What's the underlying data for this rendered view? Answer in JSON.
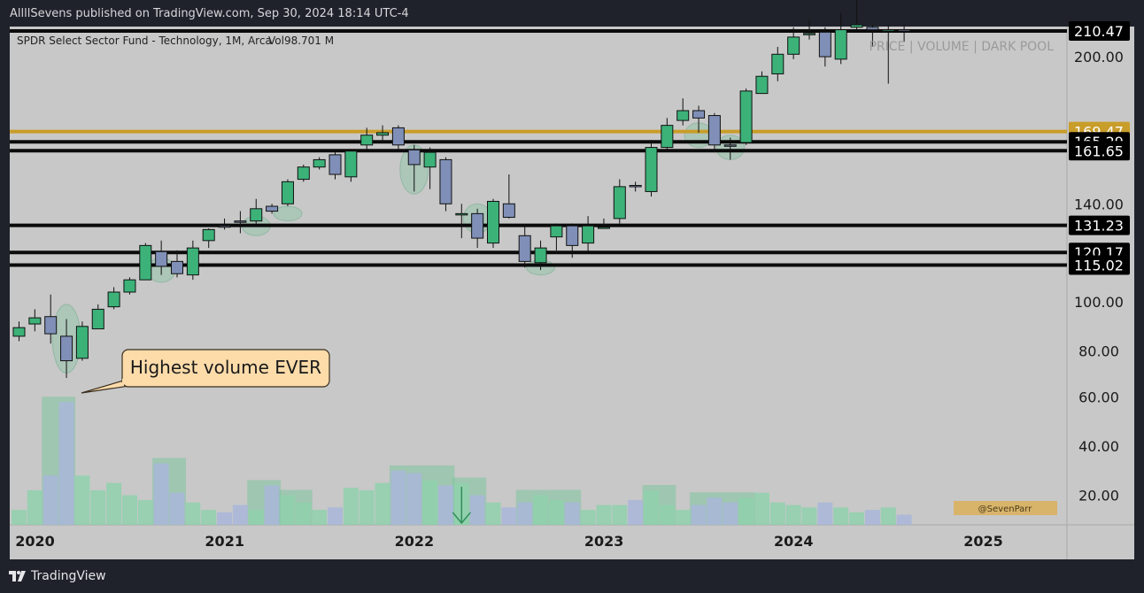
{
  "header": {
    "published_line": "AllllSevens published on TradingView.com, Sep 30, 2024 18:14 UTC-4"
  },
  "footer": {
    "brand": "TradingView"
  },
  "chart_title": "SPDR Select Sector Fund - Technology, 1M, Arca",
  "volume_label": "Vol98.701 M",
  "watermark": "PRICE | VOLUME | DARK POOL",
  "author_tag": "@SevenParr",
  "annotation": "Highest volume EVER",
  "colors": {
    "background": "#c8c8c8",
    "frame": "#1f222b",
    "up_candle": "#3cb279",
    "down_candle": "#7f8fb7",
    "support_line": "#0b0b0b",
    "gold_line": "#c99d2a",
    "callout_fill": "#fddcaa",
    "volume_up": "#8fd1ad",
    "volume_down": "#a8b6d9",
    "highlight": "#6dc494"
  },
  "chart_data": {
    "type": "candlestick",
    "title": "SPDR Select Sector Fund - Technology, 1M, Arca",
    "ylabel": "",
    "xlabel": "",
    "y_ticks": [
      "20.00",
      "40.00",
      "60.00",
      "80.00",
      "100.00",
      "140.00",
      "200.00"
    ],
    "x_ticks": [
      "2020",
      "2021",
      "2022",
      "2023",
      "2024",
      "2025"
    ],
    "price_levels": [
      {
        "label": "210.47",
        "value": 210.47,
        "style": "black"
      },
      {
        "label": "169.47",
        "value": 169.47,
        "style": "gold"
      },
      {
        "label": "165.29",
        "value": 165.29,
        "style": "black"
      },
      {
        "label": "161.65",
        "value": 161.65,
        "style": "black"
      },
      {
        "label": "131.23",
        "value": 131.23,
        "style": "black"
      },
      {
        "label": "120.17",
        "value": 120.17,
        "style": "black"
      },
      {
        "label": "115.02",
        "value": 115.02,
        "style": "black"
      }
    ],
    "candles": [
      {
        "date": "2020-01",
        "o": 86,
        "h": 92,
        "l": 84,
        "c": 89.5
      },
      {
        "date": "2020-02",
        "o": 91,
        "h": 97,
        "l": 88,
        "c": 93.5
      },
      {
        "date": "2020-03",
        "o": 94,
        "h": 103,
        "l": 83,
        "c": 87
      },
      {
        "date": "2020-04",
        "o": 86,
        "h": 93,
        "l": 69,
        "c": 76
      },
      {
        "date": "2020-05",
        "o": 77,
        "h": 92,
        "l": 76,
        "c": 90
      },
      {
        "date": "2020-06",
        "o": 89,
        "h": 99,
        "l": 89,
        "c": 97
      },
      {
        "date": "2020-07",
        "o": 98,
        "h": 106,
        "l": 97,
        "c": 104
      },
      {
        "date": "2020-08",
        "o": 104,
        "h": 110,
        "l": 103,
        "c": 109
      },
      {
        "date": "2020-09",
        "o": 109,
        "h": 124,
        "l": 109,
        "c": 123
      },
      {
        "date": "2020-10",
        "o": 120.5,
        "h": 125,
        "l": 111,
        "c": 114.5
      },
      {
        "date": "2020-11",
        "o": 116.5,
        "h": 121,
        "l": 110,
        "c": 111.5
      },
      {
        "date": "2020-12",
        "o": 111,
        "h": 125,
        "l": 109,
        "c": 122
      },
      {
        "date": "2021-01",
        "o": 125,
        "h": 130,
        "l": 122,
        "c": 129.5
      },
      {
        "date": "2021-02",
        "o": 131,
        "h": 134,
        "l": 129.5,
        "c": 130.5
      },
      {
        "date": "2021-03",
        "o": 133,
        "h": 137,
        "l": 128,
        "c": 132.5
      },
      {
        "date": "2021-04",
        "o": 133,
        "h": 142,
        "l": 132,
        "c": 138
      },
      {
        "date": "2021-05",
        "o": 139,
        "h": 140,
        "l": 136,
        "c": 137
      },
      {
        "date": "2021-06",
        "o": 140,
        "h": 150,
        "l": 139,
        "c": 149
      },
      {
        "date": "2021-07",
        "o": 150,
        "h": 156,
        "l": 149,
        "c": 155
      },
      {
        "date": "2021-08",
        "o": 155,
        "h": 159,
        "l": 154,
        "c": 158
      },
      {
        "date": "2021-09",
        "o": 160,
        "h": 161,
        "l": 150,
        "c": 152
      },
      {
        "date": "2021-10",
        "o": 151,
        "h": 162,
        "l": 149,
        "c": 161.5
      },
      {
        "date": "2021-11",
        "o": 164,
        "h": 171,
        "l": 162,
        "c": 168
      },
      {
        "date": "2021-12",
        "o": 168,
        "h": 172,
        "l": 165,
        "c": 169
      },
      {
        "date": "2022-01",
        "o": 171,
        "h": 172,
        "l": 161,
        "c": 164
      },
      {
        "date": "2022-02",
        "o": 162,
        "h": 164,
        "l": 145,
        "c": 156
      },
      {
        "date": "2022-03",
        "o": 155,
        "h": 163,
        "l": 146,
        "c": 161
      },
      {
        "date": "2022-04",
        "o": 158,
        "h": 159,
        "l": 137,
        "c": 140
      },
      {
        "date": "2022-05",
        "o": 136,
        "h": 140,
        "l": 126,
        "c": 136
      },
      {
        "date": "2022-06",
        "o": 136,
        "h": 138,
        "l": 122,
        "c": 126
      },
      {
        "date": "2022-07",
        "o": 124,
        "h": 142,
        "l": 122,
        "c": 141
      },
      {
        "date": "2022-08",
        "o": 140,
        "h": 152,
        "l": 134,
        "c": 134.5
      },
      {
        "date": "2022-09",
        "o": 127,
        "h": 131,
        "l": 114,
        "c": 116.5
      },
      {
        "date": "2022-10",
        "o": 116,
        "h": 125,
        "l": 113,
        "c": 122
      },
      {
        "date": "2022-11",
        "o": 126.5,
        "h": 132,
        "l": 121,
        "c": 131
      },
      {
        "date": "2022-12",
        "o": 131,
        "h": 132,
        "l": 118,
        "c": 123
      },
      {
        "date": "2023-01",
        "o": 124,
        "h": 135,
        "l": 120,
        "c": 131
      },
      {
        "date": "2023-02",
        "o": 130,
        "h": 134,
        "l": 130,
        "c": 130.5
      },
      {
        "date": "2023-03",
        "o": 134,
        "h": 150,
        "l": 132,
        "c": 147
      },
      {
        "date": "2023-04",
        "o": 147.5,
        "h": 149,
        "l": 145,
        "c": 147
      },
      {
        "date": "2023-05",
        "o": 145,
        "h": 166,
        "l": 143,
        "c": 163
      },
      {
        "date": "2023-06",
        "o": 163,
        "h": 175,
        "l": 162,
        "c": 172
      },
      {
        "date": "2023-07",
        "o": 174,
        "h": 183,
        "l": 172,
        "c": 178
      },
      {
        "date": "2023-08",
        "o": 178,
        "h": 180,
        "l": 169,
        "c": 175
      },
      {
        "date": "2023-09",
        "o": 176,
        "h": 177,
        "l": 161,
        "c": 164
      },
      {
        "date": "2023-10",
        "o": 164,
        "h": 167,
        "l": 158,
        "c": 163.5
      },
      {
        "date": "2023-11",
        "o": 165,
        "h": 187,
        "l": 164,
        "c": 186
      },
      {
        "date": "2023-12",
        "o": 185,
        "h": 194,
        "l": 185,
        "c": 192
      },
      {
        "date": "2024-01",
        "o": 193,
        "h": 204,
        "l": 190,
        "c": 201
      },
      {
        "date": "2024-02",
        "o": 201,
        "h": 212,
        "l": 199,
        "c": 208
      },
      {
        "date": "2024-03",
        "o": 209,
        "h": 215,
        "l": 207,
        "c": 209.5
      },
      {
        "date": "2024-04",
        "o": 210,
        "h": 212,
        "l": 196,
        "c": 200
      },
      {
        "date": "2024-05",
        "o": 199,
        "h": 218,
        "l": 197,
        "c": 211
      },
      {
        "date": "2024-06",
        "o": 212,
        "h": 226,
        "l": 211,
        "c": 213
      },
      {
        "date": "2024-07",
        "o": 212,
        "h": 213,
        "l": 204,
        "c": 211
      },
      {
        "date": "2024-08",
        "o": 211,
        "h": 213,
        "l": 189,
        "c": 211
      },
      {
        "date": "2024-09",
        "o": 211,
        "h": 213,
        "l": 206,
        "c": 210.5
      }
    ],
    "volume": [
      14,
      22,
      28,
      58,
      28,
      22,
      25,
      20,
      18,
      33,
      21,
      17,
      14,
      13,
      16,
      14,
      24,
      20,
      17,
      14,
      15,
      23,
      22,
      25,
      30,
      29,
      26,
      24,
      25,
      20,
      17,
      15,
      17,
      20,
      18,
      17,
      14,
      16,
      16,
      18,
      22,
      16,
      14,
      16,
      19,
      17,
      19,
      21,
      17,
      16,
      15,
      17,
      15,
      13,
      14,
      15,
      12
    ],
    "volume_highlights": [
      {
        "from": "2020-03",
        "to": "2020-04"
      },
      {
        "from": "2020-10",
        "to": "2020-11"
      },
      {
        "from": "2021-04",
        "to": "2021-05"
      },
      {
        "from": "2021-06",
        "to": "2021-07"
      },
      {
        "from": "2022-01",
        "to": "2022-04"
      },
      {
        "from": "2022-05",
        "to": "2022-06"
      },
      {
        "from": "2022-09",
        "to": "2022-12"
      },
      {
        "from": "2023-05",
        "to": "2023-06"
      },
      {
        "from": "2023-08",
        "to": "2023-11"
      }
    ],
    "price_highlights": [
      {
        "date": "2020-04",
        "center": 85,
        "half_height": 14
      },
      {
        "date": "2020-10",
        "center": 113,
        "half_height": 5
      },
      {
        "date": "2021-04",
        "center": 131,
        "half_height": 4
      },
      {
        "date": "2021-06",
        "center": 136,
        "half_height": 3
      },
      {
        "date": "2022-02",
        "center": 154,
        "half_height": 10
      },
      {
        "date": "2022-06",
        "center": 134,
        "half_height": 6
      },
      {
        "date": "2022-10",
        "center": 114,
        "half_height": 3
      },
      {
        "date": "2023-08",
        "center": 168,
        "half_height": 5
      },
      {
        "date": "2023-10",
        "center": 163,
        "half_height": 5
      }
    ],
    "down_arrow_at": "2022-05"
  }
}
